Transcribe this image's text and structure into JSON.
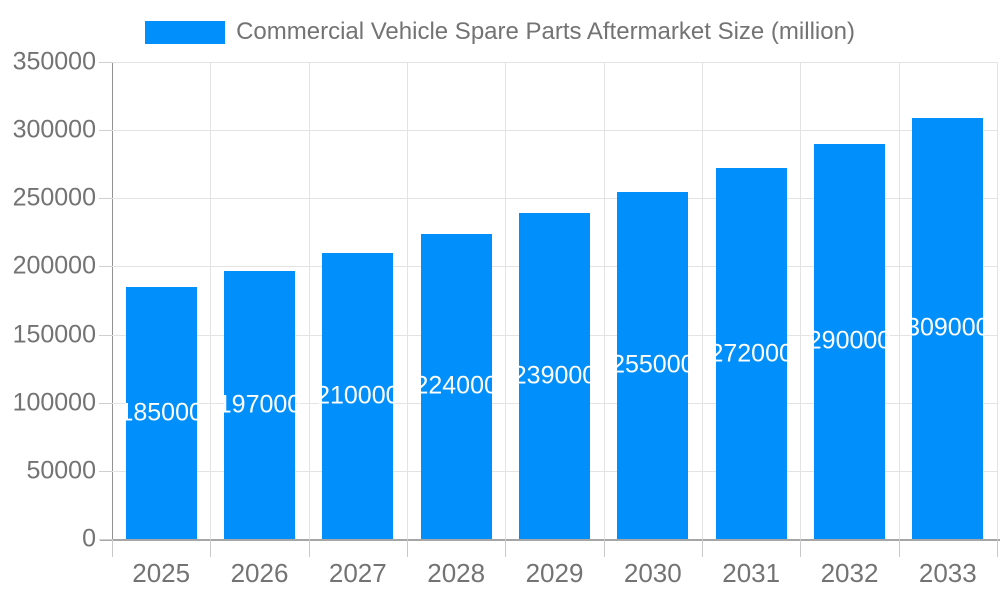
{
  "chart_data": {
    "type": "bar",
    "title": "Commercial Vehicle Spare Parts Aftermarket Size (million)",
    "series_name": "Commercial Vehicle Spare Parts Aftermarket Size (million)",
    "categories": [
      "2025",
      "2026",
      "2027",
      "2028",
      "2029",
      "2030",
      "2031",
      "2032",
      "2033"
    ],
    "values": [
      185000,
      197000,
      210000,
      224000,
      239000,
      255000,
      272000,
      290000,
      309000
    ],
    "data_labels": [
      "185000",
      "197000",
      "210000",
      "224000",
      "239000",
      "255000",
      "272000",
      "290000",
      "309000"
    ],
    "xlabel": "",
    "ylabel": "",
    "ylim": [
      0,
      350000
    ],
    "y_ticks": [
      0,
      50000,
      100000,
      150000,
      200000,
      250000,
      300000,
      350000
    ],
    "y_tick_labels": [
      "0",
      "50000",
      "100000",
      "150000",
      "200000",
      "250000",
      "300000",
      "350000"
    ],
    "grid": true,
    "legend_position": "top",
    "bar_color": "#008FFB",
    "data_label_color": "#ffffff"
  },
  "colors": {
    "accent": "#008FFB",
    "axis_text": "#737373",
    "grid_line": "#e3e3e3",
    "axis_line": "#919191",
    "tick_line": "#cfcfcf",
    "background": "#ffffff"
  }
}
